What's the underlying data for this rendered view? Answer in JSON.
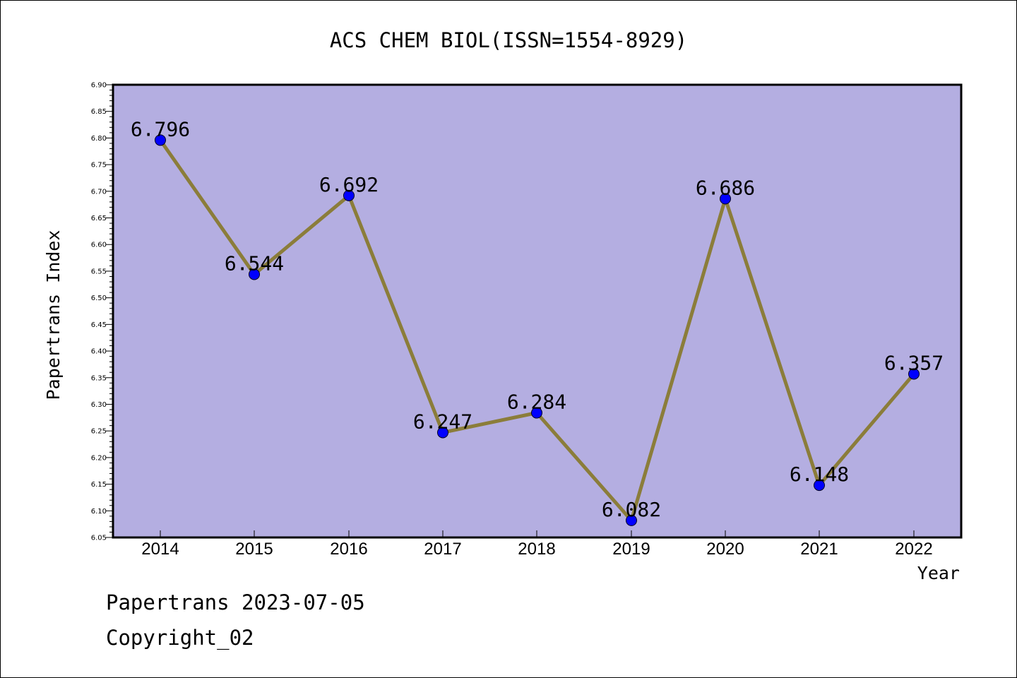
{
  "footer": {
    "line1": "Papertrans 2023-07-05",
    "line2": "Copyright_02"
  },
  "colors": {
    "background": "#ffffff",
    "plot_background": "#b4aee1",
    "line": "#8b7d3a",
    "marker": "#0000ff"
  },
  "chart_data": {
    "type": "line",
    "title": "ACS CHEM BIOL(ISSN=1554-8929)",
    "xlabel": "Year",
    "ylabel": "Papertrans Index",
    "categories": [
      "2014",
      "2015",
      "2016",
      "2017",
      "2018",
      "2019",
      "2020",
      "2021",
      "2022"
    ],
    "values": [
      6.796,
      6.544,
      6.692,
      6.247,
      6.284,
      6.082,
      6.686,
      6.148,
      6.357
    ],
    "data_labels": [
      "6.796",
      "6.544",
      "6.692",
      "6.247",
      "6.284",
      "6.082",
      "6.686",
      "6.148",
      "6.357"
    ],
    "ylim": [
      6.05,
      6.9
    ],
    "yticks": [
      "6.05",
      "6.10",
      "6.15",
      "6.20",
      "6.25",
      "6.30",
      "6.35",
      "6.40",
      "6.45",
      "6.50",
      "6.55",
      "6.60",
      "6.65",
      "6.70",
      "6.75",
      "6.80",
      "6.85",
      "6.90"
    ],
    "grid": false,
    "legend": "none"
  }
}
